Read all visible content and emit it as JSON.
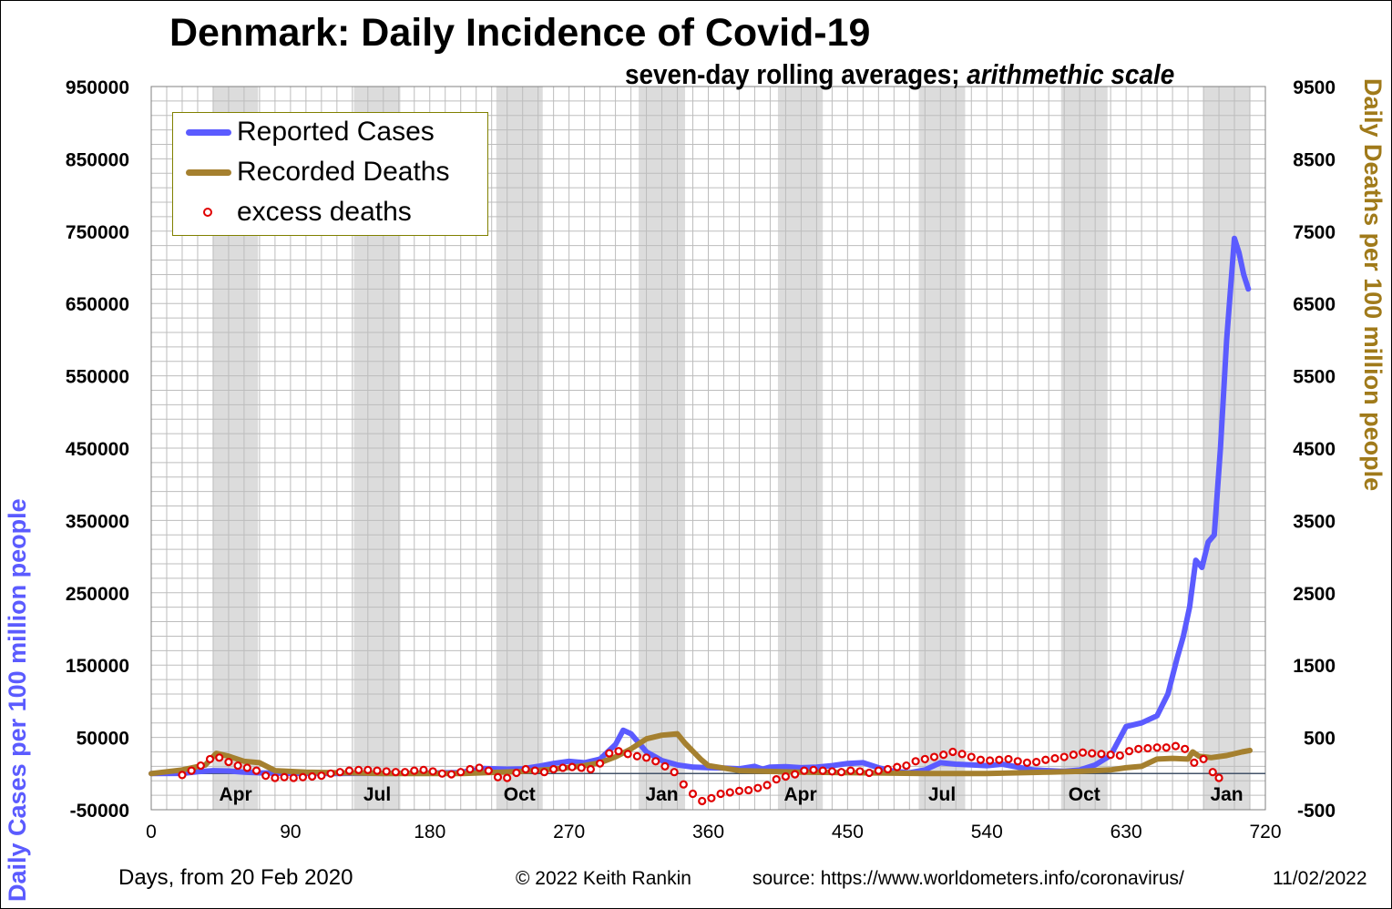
{
  "chart_data": {
    "type": "line",
    "title": "Denmark: Daily Incidence of Covid-19",
    "subtitle_main": "seven-day rolling averages; ",
    "subtitle_italic": "arithmethic scale",
    "xlabel": "Days,  from 20 Feb 2020",
    "ylabel_left": "Daily Cases per 100 million people",
    "ylabel_right": "Daily Deaths per 100 million people",
    "xlim": [
      0,
      720
    ],
    "ylim_left": [
      -50000,
      950000
    ],
    "ylim_right": [
      -500,
      9500
    ],
    "x_ticks": [
      "0",
      "90",
      "180",
      "270",
      "360",
      "450",
      "540",
      "630",
      "720"
    ],
    "y_left_ticks": [
      "950000",
      "850000",
      "750000",
      "650000",
      "550000",
      "450000",
      "350000",
      "250000",
      "150000",
      "50000",
      "-50000"
    ],
    "y_right_ticks": [
      "9500",
      "8500",
      "7500",
      "6500",
      "5500",
      "4500",
      "3500",
      "2500",
      "1500",
      "500",
      "-500"
    ],
    "grid": true,
    "legend_position": "top-left",
    "shaded_periods": [
      {
        "label": "Apr",
        "x_start": 40,
        "x_end": 69
      },
      {
        "label": "Jul",
        "x_start": 131,
        "x_end": 161
      },
      {
        "label": "Oct",
        "x_start": 223,
        "x_end": 253
      },
      {
        "label": "Jan",
        "x_start": 315,
        "x_end": 345
      },
      {
        "label": "Apr",
        "x_start": 405,
        "x_end": 434
      },
      {
        "label": "Jul",
        "x_start": 496,
        "x_end": 526
      },
      {
        "label": "Oct",
        "x_start": 588,
        "x_end": 618
      },
      {
        "label": "Jan",
        "x_start": 680,
        "x_end": 710
      }
    ],
    "series": [
      {
        "name": "Reported Cases",
        "axis": "left",
        "color": "#5b5bff",
        "points": [
          [
            0,
            0
          ],
          [
            20,
            200
          ],
          [
            30,
            2500
          ],
          [
            40,
            4000
          ],
          [
            50,
            3500
          ],
          [
            60,
            2000
          ],
          [
            70,
            1000
          ],
          [
            90,
            200
          ],
          [
            120,
            100
          ],
          [
            150,
            300
          ],
          [
            180,
            700
          ],
          [
            200,
            1500
          ],
          [
            215,
            7000
          ],
          [
            230,
            6000
          ],
          [
            240,
            6500
          ],
          [
            250,
            10000
          ],
          [
            260,
            14000
          ],
          [
            270,
            17000
          ],
          [
            280,
            15000
          ],
          [
            290,
            20000
          ],
          [
            300,
            40000
          ],
          [
            305,
            60000
          ],
          [
            310,
            55000
          ],
          [
            320,
            30000
          ],
          [
            330,
            18000
          ],
          [
            340,
            12000
          ],
          [
            350,
            9000
          ],
          [
            360,
            8000
          ],
          [
            370,
            7500
          ],
          [
            380,
            6500
          ],
          [
            390,
            10000
          ],
          [
            395,
            6000
          ],
          [
            400,
            9000
          ],
          [
            410,
            9500
          ],
          [
            420,
            8000
          ],
          [
            430,
            9000
          ],
          [
            440,
            11000
          ],
          [
            450,
            14000
          ],
          [
            460,
            15000
          ],
          [
            470,
            8000
          ],
          [
            480,
            3000
          ],
          [
            490,
            1000
          ],
          [
            500,
            5000
          ],
          [
            510,
            15000
          ],
          [
            520,
            13000
          ],
          [
            530,
            12000
          ],
          [
            540,
            11000
          ],
          [
            550,
            13000
          ],
          [
            560,
            9000
          ],
          [
            570,
            5000
          ],
          [
            580,
            4000
          ],
          [
            590,
            3000
          ],
          [
            600,
            5000
          ],
          [
            610,
            12000
          ],
          [
            620,
            25000
          ],
          [
            630,
            65000
          ],
          [
            640,
            70000
          ],
          [
            650,
            80000
          ],
          [
            657,
            110000
          ],
          [
            663,
            160000
          ],
          [
            667,
            190000
          ],
          [
            671,
            230000
          ],
          [
            675,
            295000
          ],
          [
            679,
            285000
          ],
          [
            683,
            320000
          ],
          [
            687,
            330000
          ],
          [
            691,
            450000
          ],
          [
            695,
            600000
          ],
          [
            700,
            740000
          ],
          [
            703,
            720000
          ],
          [
            706,
            690000
          ],
          [
            709,
            670000
          ]
        ]
      },
      {
        "name": "Recorded Deaths",
        "axis": "right",
        "color": "#a5802f",
        "points": [
          [
            0,
            0
          ],
          [
            20,
            50
          ],
          [
            35,
            120
          ],
          [
            42,
            280
          ],
          [
            50,
            240
          ],
          [
            60,
            170
          ],
          [
            70,
            150
          ],
          [
            80,
            40
          ],
          [
            100,
            20
          ],
          [
            150,
            0
          ],
          [
            200,
            0
          ],
          [
            240,
            30
          ],
          [
            260,
            60
          ],
          [
            280,
            110
          ],
          [
            290,
            150
          ],
          [
            300,
            230
          ],
          [
            310,
            340
          ],
          [
            320,
            480
          ],
          [
            330,
            530
          ],
          [
            340,
            550
          ],
          [
            345,
            420
          ],
          [
            355,
            200
          ],
          [
            360,
            110
          ],
          [
            380,
            40
          ],
          [
            420,
            20
          ],
          [
            460,
            10
          ],
          [
            500,
            0
          ],
          [
            540,
            0
          ],
          [
            580,
            20
          ],
          [
            600,
            30
          ],
          [
            620,
            50
          ],
          [
            630,
            80
          ],
          [
            640,
            100
          ],
          [
            650,
            200
          ],
          [
            660,
            210
          ],
          [
            670,
            200
          ],
          [
            673,
            300
          ],
          [
            677,
            240
          ],
          [
            685,
            220
          ],
          [
            695,
            250
          ],
          [
            705,
            300
          ],
          [
            710,
            320
          ]
        ]
      },
      {
        "name": "excess deaths",
        "axis": "right",
        "color": "#e00000",
        "marker": "circle",
        "points": [
          [
            20,
            -20
          ],
          [
            26,
            40
          ],
          [
            32,
            110
          ],
          [
            38,
            200
          ],
          [
            44,
            220
          ],
          [
            50,
            160
          ],
          [
            56,
            110
          ],
          [
            62,
            80
          ],
          [
            68,
            40
          ],
          [
            74,
            -30
          ],
          [
            80,
            -60
          ],
          [
            86,
            -50
          ],
          [
            92,
            -60
          ],
          [
            98,
            -50
          ],
          [
            104,
            -40
          ],
          [
            110,
            -30
          ],
          [
            116,
            0
          ],
          [
            122,
            20
          ],
          [
            128,
            40
          ],
          [
            134,
            50
          ],
          [
            140,
            50
          ],
          [
            146,
            40
          ],
          [
            152,
            30
          ],
          [
            158,
            20
          ],
          [
            164,
            20
          ],
          [
            170,
            40
          ],
          [
            176,
            50
          ],
          [
            182,
            30
          ],
          [
            188,
            0
          ],
          [
            194,
            -10
          ],
          [
            200,
            20
          ],
          [
            206,
            60
          ],
          [
            212,
            80
          ],
          [
            218,
            40
          ],
          [
            224,
            -50
          ],
          [
            230,
            -60
          ],
          [
            236,
            10
          ],
          [
            242,
            60
          ],
          [
            248,
            40
          ],
          [
            254,
            20
          ],
          [
            260,
            60
          ],
          [
            266,
            80
          ],
          [
            272,
            90
          ],
          [
            278,
            80
          ],
          [
            284,
            60
          ],
          [
            290,
            140
          ],
          [
            296,
            280
          ],
          [
            302,
            310
          ],
          [
            308,
            270
          ],
          [
            314,
            240
          ],
          [
            320,
            220
          ],
          [
            326,
            170
          ],
          [
            332,
            100
          ],
          [
            338,
            20
          ],
          [
            344,
            -150
          ],
          [
            350,
            -280
          ],
          [
            356,
            -380
          ],
          [
            362,
            -340
          ],
          [
            368,
            -280
          ],
          [
            374,
            -260
          ],
          [
            380,
            -240
          ],
          [
            386,
            -230
          ],
          [
            392,
            -200
          ],
          [
            398,
            -160
          ],
          [
            404,
            -80
          ],
          [
            410,
            -40
          ],
          [
            416,
            -10
          ],
          [
            422,
            40
          ],
          [
            428,
            50
          ],
          [
            434,
            40
          ],
          [
            440,
            30
          ],
          [
            446,
            20
          ],
          [
            452,
            40
          ],
          [
            458,
            30
          ],
          [
            464,
            10
          ],
          [
            470,
            40
          ],
          [
            476,
            60
          ],
          [
            482,
            90
          ],
          [
            488,
            110
          ],
          [
            494,
            170
          ],
          [
            500,
            200
          ],
          [
            506,
            230
          ],
          [
            512,
            260
          ],
          [
            518,
            300
          ],
          [
            524,
            270
          ],
          [
            530,
            230
          ],
          [
            536,
            190
          ],
          [
            542,
            180
          ],
          [
            548,
            190
          ],
          [
            554,
            200
          ],
          [
            560,
            170
          ],
          [
            566,
            150
          ],
          [
            572,
            160
          ],
          [
            578,
            190
          ],
          [
            584,
            210
          ],
          [
            590,
            230
          ],
          [
            596,
            260
          ],
          [
            602,
            290
          ],
          [
            608,
            280
          ],
          [
            614,
            270
          ],
          [
            620,
            260
          ],
          [
            626,
            250
          ],
          [
            632,
            310
          ],
          [
            638,
            340
          ],
          [
            644,
            350
          ],
          [
            650,
            360
          ],
          [
            656,
            360
          ],
          [
            662,
            380
          ],
          [
            668,
            340
          ],
          [
            674,
            150
          ],
          [
            680,
            200
          ],
          [
            686,
            20
          ],
          [
            690,
            -60
          ]
        ]
      }
    ]
  },
  "footer": {
    "copyright": "© 2022  Keith Rankin",
    "source": "source: https://www.worldometers.info/coronavirus/",
    "date": "11/02/2022"
  }
}
